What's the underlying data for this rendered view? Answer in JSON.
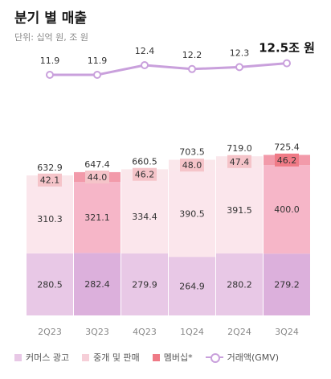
{
  "header": {
    "title": "분기 별 매출",
    "unit": "단위: 십억 원, 조 원"
  },
  "legend": {
    "commerce_ads": "커머스 광고",
    "brokerage": "중개 및 판매",
    "membership": "멤버십*",
    "gmv": "거래액(GMV)"
  },
  "colors": {
    "commerce_ads": "#e8c8e6",
    "brokerage": "#fbe6ec",
    "membership": "#f4b7c6",
    "membership_label": "#f5c4c9",
    "membership_label_last": "#ef7a86",
    "gmv_line": "#c9a0dc",
    "col_highlight_bottom": "#dcb0dc",
    "col_highlight_middle": "#f6b6c8"
  },
  "chart_data": {
    "type": "bar",
    "stacked": true,
    "categories": [
      "2Q23",
      "3Q23",
      "4Q23",
      "1Q24",
      "2Q24",
      "3Q24"
    ],
    "series": [
      {
        "name": "커머스 광고",
        "values": [
          280.5,
          282.4,
          279.9,
          264.9,
          280.2,
          279.2
        ]
      },
      {
        "name": "중개 및 판매",
        "values": [
          310.3,
          321.1,
          334.4,
          390.5,
          391.5,
          400.0
        ]
      },
      {
        "name": "멤버십*",
        "values": [
          42.1,
          44.0,
          46.2,
          48.0,
          47.4,
          46.2
        ]
      }
    ],
    "totals": [
      632.9,
      647.4,
      660.5,
      703.5,
      719.0,
      725.4
    ],
    "line": {
      "name": "거래액(GMV)",
      "values": [
        11.9,
        11.9,
        12.4,
        12.2,
        12.3,
        12.5
      ],
      "labels": [
        "11.9",
        "11.9",
        "12.4",
        "12.2",
        "12.3",
        "12.5조 원"
      ]
    },
    "highlighted_columns": [
      "3Q23",
      "3Q24"
    ]
  }
}
